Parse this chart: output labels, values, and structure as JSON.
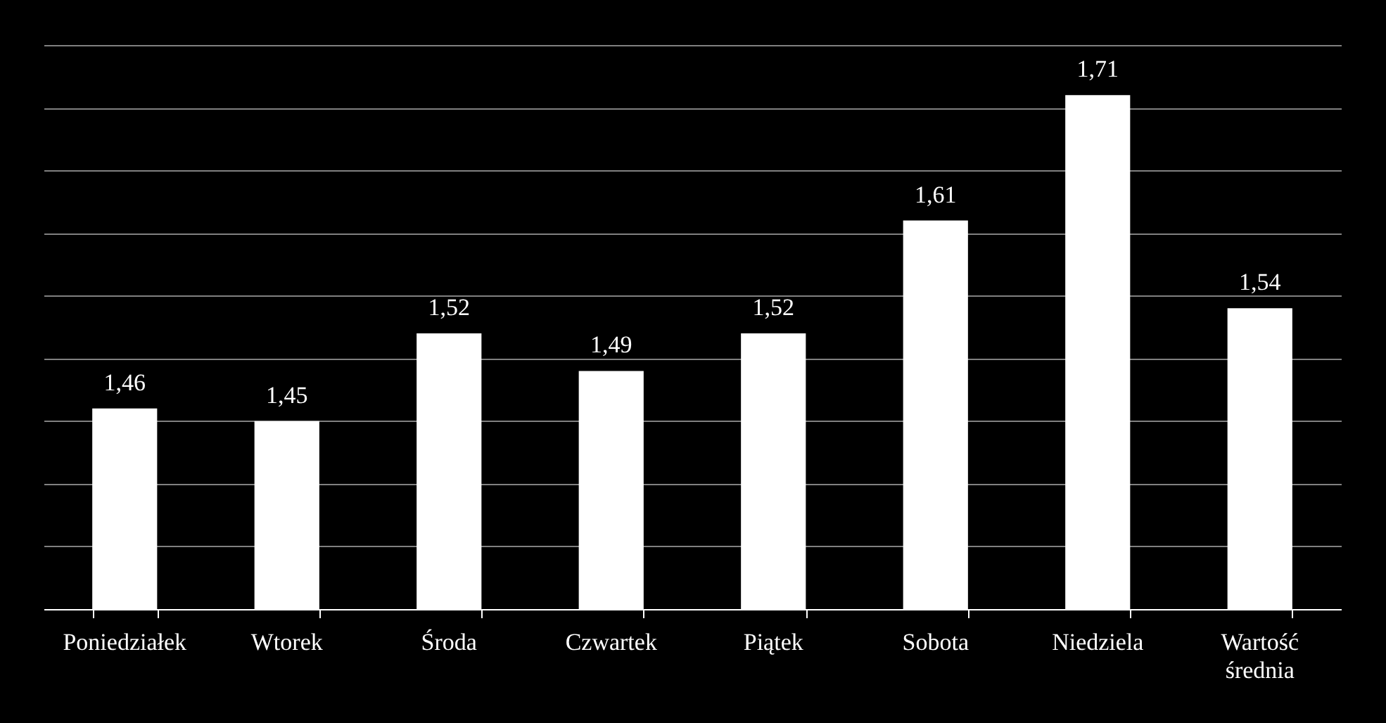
{
  "chart_data": {
    "type": "bar",
    "categories": [
      "Poniedziałek",
      "Wtorek",
      "Środa",
      "Czwartek",
      "Piątek",
      "Sobota",
      "Niedziela",
      "Wartość średnia"
    ],
    "values": [
      1.46,
      1.45,
      1.52,
      1.49,
      1.52,
      1.61,
      1.71,
      1.54
    ],
    "value_labels": [
      "1,46",
      "1,45",
      "1,52",
      "1,49",
      "1,52",
      "1,61",
      "1,71",
      "1,54"
    ],
    "color": "#ffffff",
    "ylim": [
      1.3,
      1.75
    ],
    "grid": "y",
    "tick_labels": "x"
  }
}
